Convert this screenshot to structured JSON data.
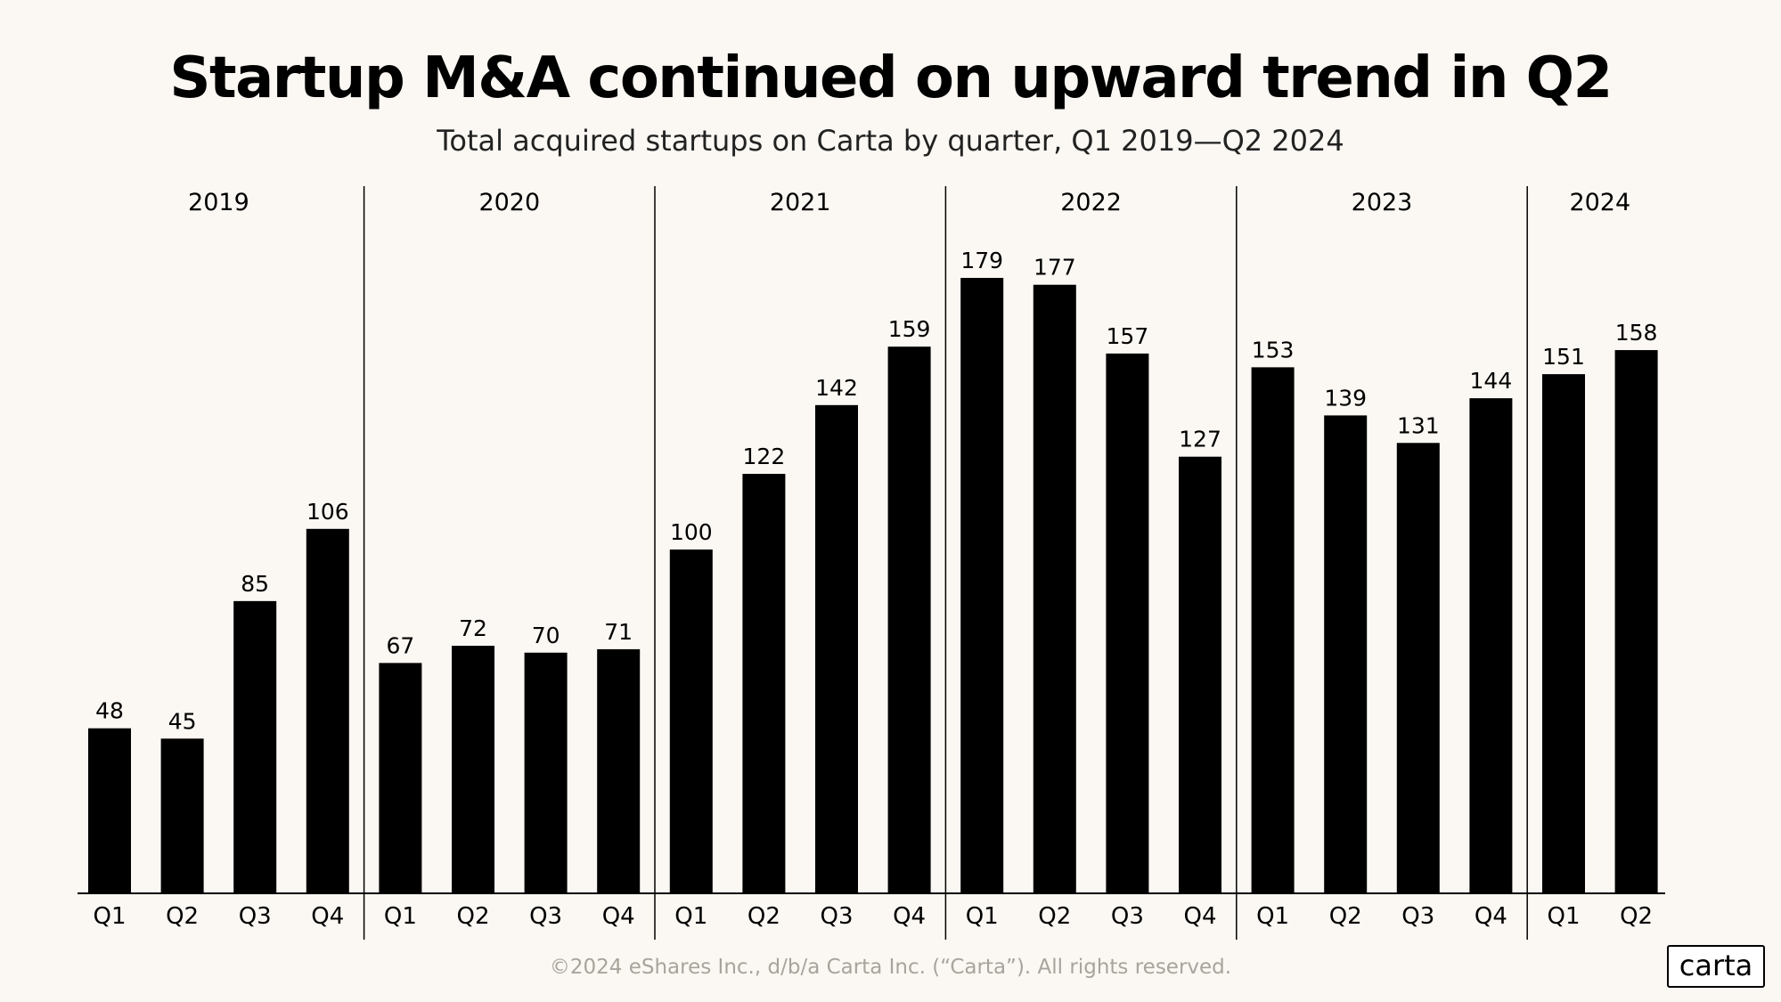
{
  "title": "Startup M&A continued on upward trend in Q2",
  "subtitle": "Total acquired startups on Carta by quarter, Q1 2019—Q2 2024",
  "footer": "©2024 eShares Inc., d/b/a Carta Inc. (“Carta”). All rights reserved.",
  "logo": "carta",
  "colors": {
    "background": "#FBF8F3",
    "bar": "#000000",
    "footer": "#A8A49C"
  },
  "chart_data": {
    "type": "bar",
    "title": "Startup M&A continued on upward trend in Q2",
    "subtitle": "Total acquired startups on Carta by quarter, Q1 2019—Q2 2024",
    "xlabel": "",
    "ylabel": "",
    "ylim": [
      0,
      179
    ],
    "grid": false,
    "groups": [
      {
        "year": "2019",
        "quarters": [
          "Q1",
          "Q2",
          "Q3",
          "Q4"
        ],
        "values": [
          48,
          45,
          85,
          106
        ]
      },
      {
        "year": "2020",
        "quarters": [
          "Q1",
          "Q2",
          "Q3",
          "Q4"
        ],
        "values": [
          67,
          72,
          70,
          71
        ]
      },
      {
        "year": "2021",
        "quarters": [
          "Q1",
          "Q2",
          "Q3",
          "Q4"
        ],
        "values": [
          100,
          122,
          142,
          159
        ]
      },
      {
        "year": "2022",
        "quarters": [
          "Q1",
          "Q2",
          "Q3",
          "Q4"
        ],
        "values": [
          179,
          177,
          157,
          127
        ]
      },
      {
        "year": "2023",
        "quarters": [
          "Q1",
          "Q2",
          "Q3",
          "Q4"
        ],
        "values": [
          153,
          139,
          131,
          144
        ]
      },
      {
        "year": "2024",
        "quarters": [
          "Q1",
          "Q2"
        ],
        "values": [
          151,
          158
        ]
      }
    ]
  }
}
